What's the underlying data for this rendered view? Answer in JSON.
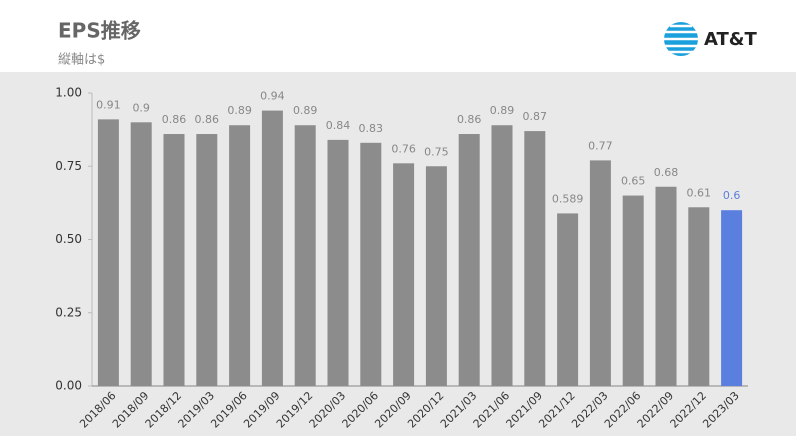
{
  "chart_data": {
    "type": "bar",
    "title": "EPS推移",
    "subtitle": "縦軸は$",
    "logo": "AT&T",
    "categories": [
      "2018/06",
      "2018/09",
      "2018/12",
      "2019/03",
      "2019/06",
      "2019/09",
      "2019/12",
      "2020/03",
      "2020/06",
      "2020/09",
      "2020/12",
      "2021/03",
      "2021/06",
      "2021/09",
      "2021/12",
      "2022/03",
      "2022/06",
      "2022/09",
      "2022/12",
      "2023/03"
    ],
    "values": [
      0.91,
      0.9,
      0.86,
      0.86,
      0.89,
      0.94,
      0.89,
      0.84,
      0.83,
      0.76,
      0.75,
      0.86,
      0.89,
      0.87,
      0.589,
      0.77,
      0.65,
      0.68,
      0.61,
      0.6
    ],
    "colors": [
      "#8c8c8c",
      "#8c8c8c",
      "#8c8c8c",
      "#8c8c8c",
      "#8c8c8c",
      "#8c8c8c",
      "#8c8c8c",
      "#8c8c8c",
      "#8c8c8c",
      "#8c8c8c",
      "#8c8c8c",
      "#8c8c8c",
      "#8c8c8c",
      "#8c8c8c",
      "#8c8c8c",
      "#8c8c8c",
      "#8c8c8c",
      "#8c8c8c",
      "#8c8c8c",
      "#5b7fde"
    ],
    "ylim": [
      0,
      1
    ],
    "yticks": [
      {
        "value": 0,
        "label": "0.00"
      },
      {
        "value": 0.25,
        "label": "0.25"
      },
      {
        "value": 0.5,
        "label": "0.50"
      },
      {
        "value": 0.75,
        "label": "0.75"
      },
      {
        "value": 1,
        "label": "1.00"
      }
    ]
  }
}
